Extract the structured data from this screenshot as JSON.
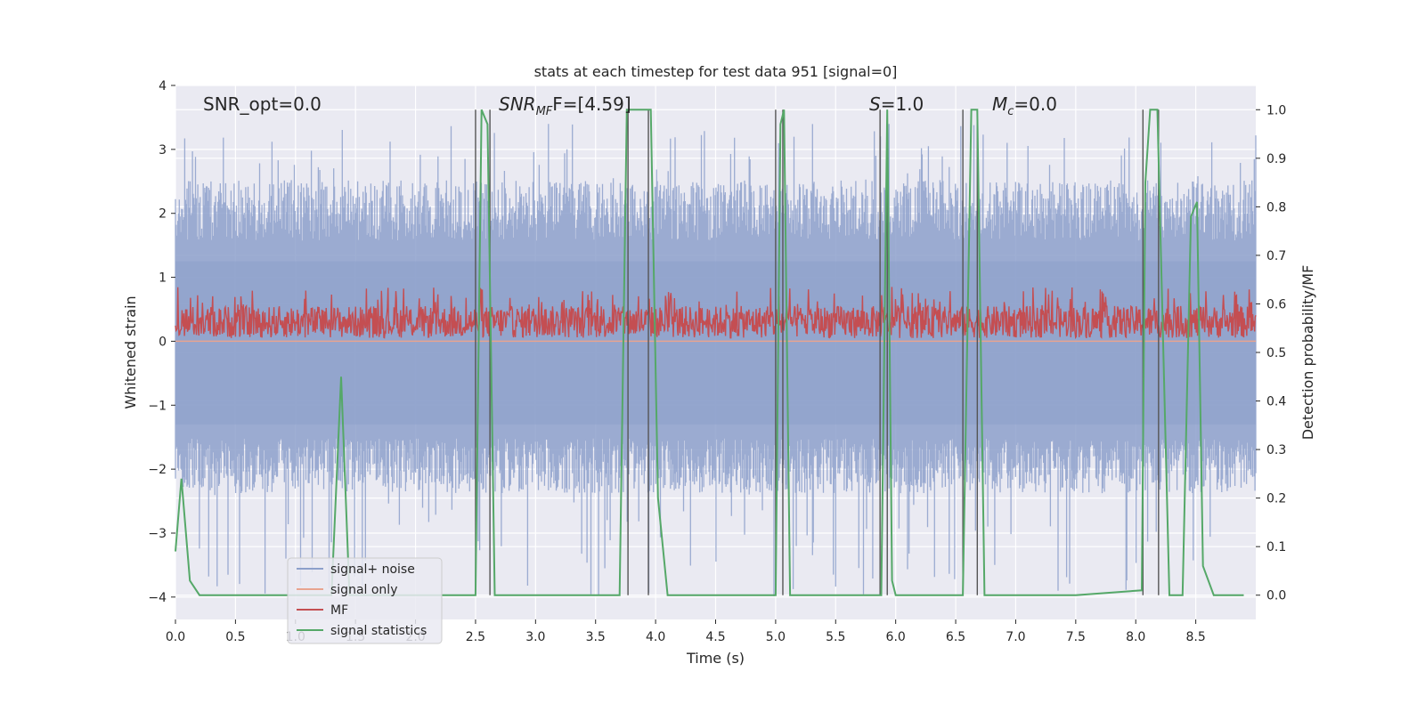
{
  "chart_data": {
    "type": "line",
    "title": "stats at each timestep for test data 951 [signal=0]",
    "xlabel": "Time (s)",
    "ylabel_left": "Whitened strain",
    "ylabel_right": "Detection probability/MF",
    "xlim": [
      0.0,
      9.0
    ],
    "ylim_left": [
      -4.35,
      4.0
    ],
    "ylim_right": [
      -0.05,
      1.05
    ],
    "x_ticks": [
      "0.0",
      "0.5",
      "1.0",
      "1.5",
      "2.0",
      "2.5",
      "3.0",
      "3.5",
      "4.0",
      "4.5",
      "5.0",
      "5.5",
      "6.0",
      "6.5",
      "7.0",
      "7.5",
      "8.0",
      "8.5"
    ],
    "y_ticks_left": [
      "−4",
      "−3",
      "−2",
      "−1",
      "0",
      "1",
      "2",
      "3",
      "4"
    ],
    "y_ticks_right": [
      "0.0",
      "0.1",
      "0.2",
      "0.3",
      "0.4",
      "0.5",
      "0.6",
      "0.7",
      "0.8",
      "0.9",
      "1.0"
    ],
    "grid": true,
    "legend_position": "lower-left",
    "annotations": {
      "snr_opt": "SNR_opt=0.0",
      "snr_mf_main": "SNR",
      "snr_mf_sub": "MF",
      "snr_mf_rest": "F=[4.59]",
      "s_main": "S",
      "s_rest": "=1.0",
      "mc_main": "M",
      "mc_sub": "c",
      "mc_rest": "=0.0"
    },
    "series": [
      {
        "name": "signal+ noise",
        "color": "#8da0cb",
        "envelope_hi": 2.1,
        "envelope_lo": -1.9,
        "spike_max": 3.4,
        "spike_min": -4.0
      },
      {
        "name": "signal only",
        "color": "#e8a48f",
        "y": 0.0
      },
      {
        "name": "MF",
        "color": "#c44e52",
        "band": [
          0.05,
          0.85
        ]
      },
      {
        "name": "signal statistics",
        "color": "#55a868",
        "x": [
          0.0,
          0.05,
          0.12,
          0.2,
          0.5,
          1.0,
          1.3,
          1.38,
          1.45,
          2.0,
          2.5,
          2.55,
          2.6,
          2.66,
          2.68,
          3.0,
          3.7,
          3.76,
          3.82,
          3.96,
          4.02,
          4.1,
          4.5,
          5.0,
          5.04,
          5.07,
          5.12,
          5.4,
          5.88,
          5.93,
          5.97,
          6.0,
          6.3,
          6.56,
          6.63,
          6.68,
          6.74,
          7.5,
          8.05,
          8.08,
          8.12,
          8.18,
          8.28,
          8.39,
          8.46,
          8.51,
          8.56,
          8.65,
          8.9
        ],
        "y": [
          0.09,
          0.24,
          0.03,
          0.0,
          0.0,
          0.0,
          0.0,
          0.45,
          0.0,
          0.0,
          0.0,
          1.0,
          0.97,
          0.0,
          0.0,
          0.0,
          0.0,
          1.0,
          1.0,
          1.0,
          0.2,
          0.0,
          0.0,
          0.0,
          0.97,
          1.0,
          0.0,
          0.0,
          0.0,
          1.0,
          0.03,
          0.0,
          0.0,
          0.0,
          1.0,
          1.0,
          0.0,
          0.0,
          0.01,
          0.85,
          1.0,
          1.0,
          0.0,
          0.0,
          0.78,
          0.81,
          0.06,
          0.0,
          0.0
        ]
      }
    ],
    "vertical_markers": [
      2.5,
      2.62,
      3.77,
      3.94,
      5.0,
      5.06,
      5.87,
      5.93,
      6.56,
      6.68,
      8.06,
      8.19
    ]
  }
}
